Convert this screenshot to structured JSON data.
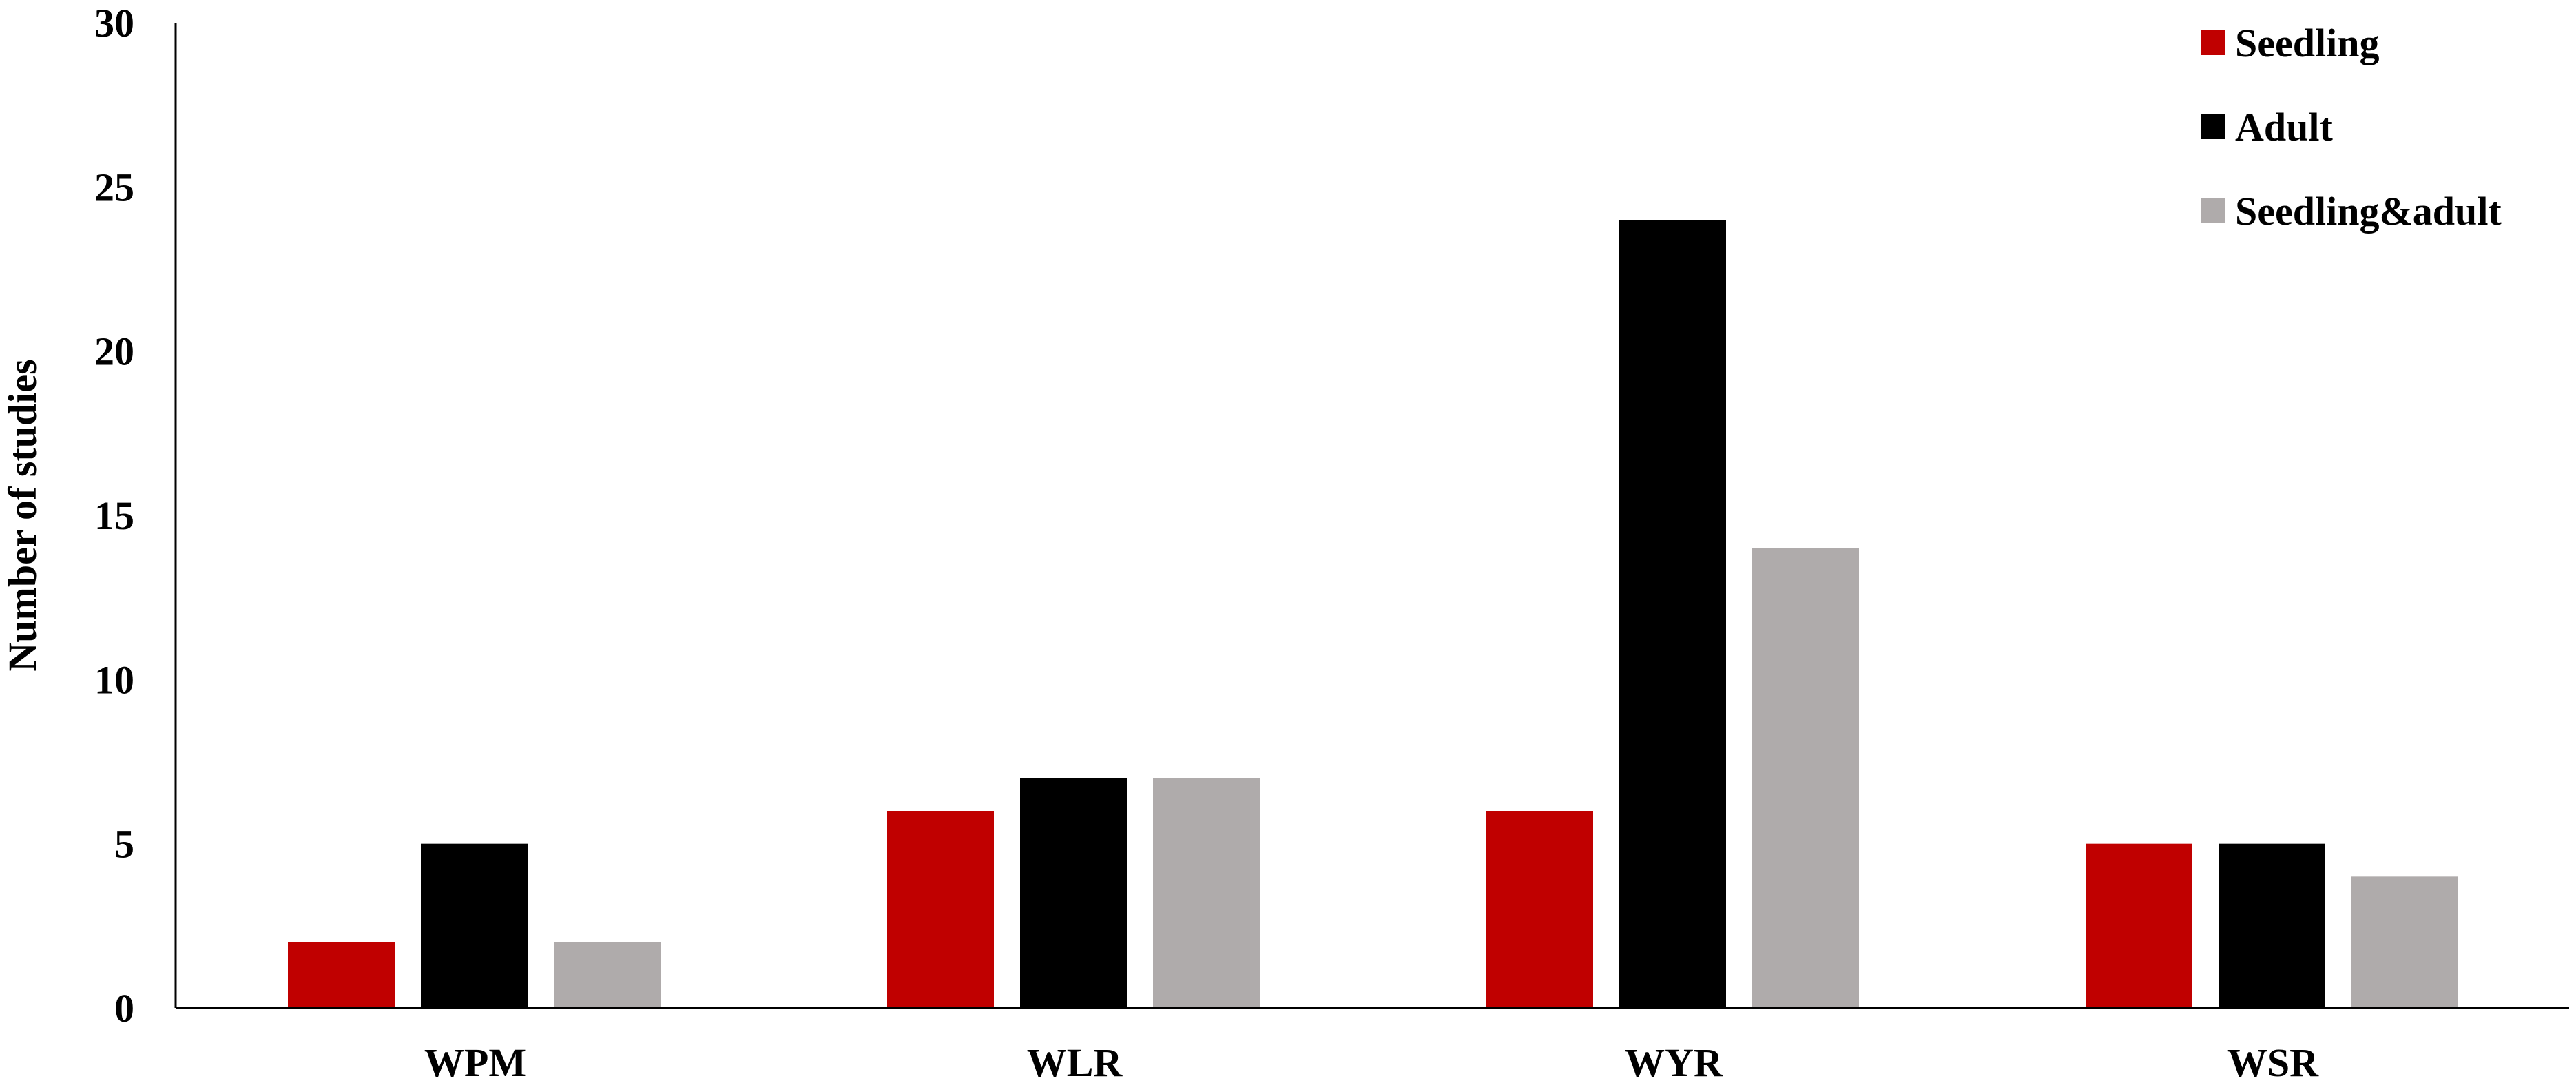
{
  "chart_data": {
    "type": "bar",
    "title": "",
    "xlabel": "",
    "ylabel": "Number of studies",
    "ylim": [
      0,
      30
    ],
    "yticks": [
      0,
      5,
      10,
      15,
      20,
      25,
      30
    ],
    "categories": [
      "WPM",
      "WLR",
      "WYR",
      "WSR"
    ],
    "series": [
      {
        "name": "Seedling",
        "color": "#c00000",
        "values": [
          2,
          6,
          6,
          5
        ]
      },
      {
        "name": "Adult",
        "color": "#000000",
        "values": [
          5,
          7,
          24,
          5
        ]
      },
      {
        "name": "Seedling&adult",
        "color": "#afabab",
        "values": [
          2,
          7,
          14,
          4
        ]
      }
    ],
    "grid": false,
    "legend_position": "top-right"
  }
}
